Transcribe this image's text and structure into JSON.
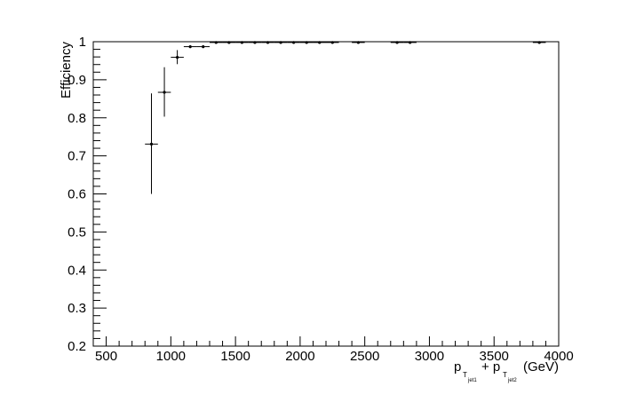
{
  "chart_data": {
    "type": "scatter",
    "ylabel": "Efficiency",
    "xlabel": {
      "p1": "p",
      "s1": "T",
      "ss1": "jet1",
      "plus": "+ p",
      "s2": "T",
      "ss2": "jet2",
      "unit": "(GeV)"
    },
    "xlim": [
      400,
      4000
    ],
    "ylim": [
      0.2,
      1.0
    ],
    "x_ticks": [
      500,
      1000,
      1500,
      2000,
      2500,
      3000,
      3500,
      4000
    ],
    "y_ticks": [
      0.2,
      0.3,
      0.4,
      0.5,
      0.6,
      0.7,
      0.8,
      0.9,
      1.0
    ],
    "x_tick_labels": [
      "500",
      "1000",
      "1500",
      "2000",
      "2500",
      "3000",
      "3500",
      "4000"
    ],
    "y_tick_labels": [
      "0.2",
      "0.3",
      "0.4",
      "0.5",
      "0.6",
      "0.7",
      "0.8",
      "0.9",
      "1"
    ],
    "grid": false,
    "marker_color": "#000000",
    "points": [
      {
        "x": 850,
        "y": 0.731,
        "x_lo": 800,
        "x_hi": 900,
        "y_lo": 0.6,
        "y_hi": 0.864
      },
      {
        "x": 950,
        "y": 0.867,
        "x_lo": 900,
        "x_hi": 1000,
        "y_lo": 0.803,
        "y_hi": 0.933
      },
      {
        "x": 1050,
        "y": 0.959,
        "x_lo": 1000,
        "x_hi": 1100,
        "y_lo": 0.941,
        "y_hi": 0.978
      },
      {
        "x": 1150,
        "y": 0.987,
        "x_lo": 1100,
        "x_hi": 1200,
        "y_lo": 0.983,
        "y_hi": 0.991
      },
      {
        "x": 1250,
        "y": 0.987,
        "x_lo": 1200,
        "x_hi": 1300,
        "y_lo": 0.983,
        "y_hi": 0.991
      },
      {
        "x": 1350,
        "y": 0.998,
        "x_lo": 1300,
        "x_hi": 1400,
        "y_lo": 0.996,
        "y_hi": 1.0
      },
      {
        "x": 1450,
        "y": 0.998,
        "x_lo": 1400,
        "x_hi": 1500,
        "y_lo": 0.996,
        "y_hi": 1.0
      },
      {
        "x": 1550,
        "y": 0.998,
        "x_lo": 1500,
        "x_hi": 1600,
        "y_lo": 0.996,
        "y_hi": 1.0
      },
      {
        "x": 1650,
        "y": 0.998,
        "x_lo": 1600,
        "x_hi": 1700,
        "y_lo": 0.996,
        "y_hi": 1.0
      },
      {
        "x": 1750,
        "y": 0.998,
        "x_lo": 1700,
        "x_hi": 1800,
        "y_lo": 0.996,
        "y_hi": 1.0
      },
      {
        "x": 1850,
        "y": 0.998,
        "x_lo": 1800,
        "x_hi": 1900,
        "y_lo": 0.996,
        "y_hi": 1.0
      },
      {
        "x": 1950,
        "y": 0.998,
        "x_lo": 1900,
        "x_hi": 2000,
        "y_lo": 0.996,
        "y_hi": 1.0
      },
      {
        "x": 2050,
        "y": 0.998,
        "x_lo": 2000,
        "x_hi": 2100,
        "y_lo": 0.996,
        "y_hi": 1.0
      },
      {
        "x": 2150,
        "y": 0.998,
        "x_lo": 2100,
        "x_hi": 2200,
        "y_lo": 0.996,
        "y_hi": 1.0
      },
      {
        "x": 2250,
        "y": 0.998,
        "x_lo": 2200,
        "x_hi": 2300,
        "y_lo": 0.996,
        "y_hi": 1.0
      },
      {
        "x": 2450,
        "y": 0.998,
        "x_lo": 2400,
        "x_hi": 2500,
        "y_lo": 0.996,
        "y_hi": 1.0
      },
      {
        "x": 2750,
        "y": 0.998,
        "x_lo": 2700,
        "x_hi": 2800,
        "y_lo": 0.996,
        "y_hi": 1.0
      },
      {
        "x": 2850,
        "y": 0.998,
        "x_lo": 2800,
        "x_hi": 2900,
        "y_lo": 0.996,
        "y_hi": 1.0
      },
      {
        "x": 3850,
        "y": 0.998,
        "x_lo": 3800,
        "x_hi": 3900,
        "y_lo": 0.996,
        "y_hi": 1.0
      }
    ]
  }
}
